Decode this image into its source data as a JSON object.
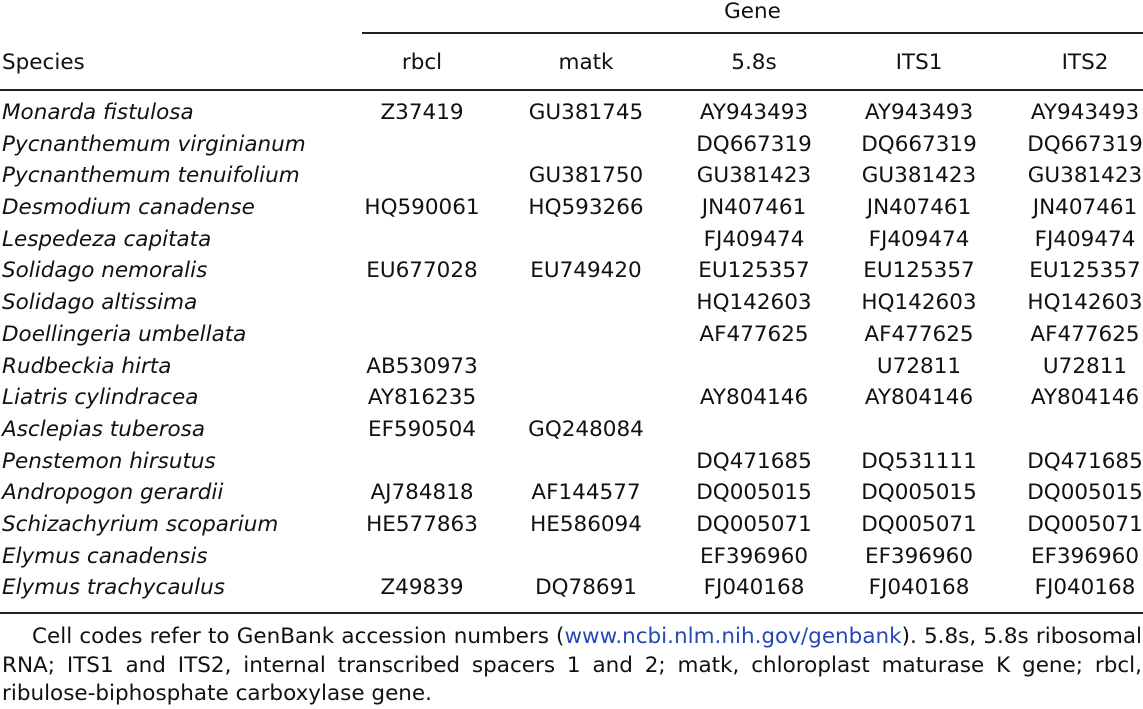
{
  "table": {
    "group_header": "Gene",
    "columns": [
      "Species",
      "rbcl",
      "matk",
      "5.8s",
      "ITS1",
      "ITS2"
    ],
    "rows": [
      {
        "species": "Monarda fistulosa",
        "rbcl": "Z37419",
        "matk": "GU381745",
        "s58": "AY943493",
        "its1": "AY943493",
        "its2": "AY943493"
      },
      {
        "species": "Pycnanthemum virginianum",
        "rbcl": "",
        "matk": "",
        "s58": "DQ667319",
        "its1": "DQ667319",
        "its2": "DQ667319"
      },
      {
        "species": "Pycnanthemum tenuifolium",
        "rbcl": "",
        "matk": "GU381750",
        "s58": "GU381423",
        "its1": "GU381423",
        "its2": "GU381423"
      },
      {
        "species": "Desmodium canadense",
        "rbcl": "HQ590061",
        "matk": "HQ593266",
        "s58": "JN407461",
        "its1": "JN407461",
        "its2": "JN407461"
      },
      {
        "species": "Lespedeza capitata",
        "rbcl": "",
        "matk": "",
        "s58": "FJ409474",
        "its1": "FJ409474",
        "its2": "FJ409474"
      },
      {
        "species": "Solidago nemoralis",
        "rbcl": "EU677028",
        "matk": "EU749420",
        "s58": "EU125357",
        "its1": "EU125357",
        "its2": "EU125357"
      },
      {
        "species": "Solidago altissima",
        "rbcl": "",
        "matk": "",
        "s58": "HQ142603",
        "its1": "HQ142603",
        "its2": "HQ142603"
      },
      {
        "species": "Doellingeria umbellata",
        "rbcl": "",
        "matk": "",
        "s58": "AF477625",
        "its1": "AF477625",
        "its2": "AF477625"
      },
      {
        "species": "Rudbeckia hirta",
        "rbcl": "AB530973",
        "matk": "",
        "s58": "",
        "its1": "U72811",
        "its2": "U72811"
      },
      {
        "species": "Liatris cylindracea",
        "rbcl": "AY816235",
        "matk": "",
        "s58": "AY804146",
        "its1": "AY804146",
        "its2": "AY804146"
      },
      {
        "species": "Asclepias tuberosa",
        "rbcl": "EF590504",
        "matk": "GQ248084",
        "s58": "",
        "its1": "",
        "its2": ""
      },
      {
        "species": "Penstemon hirsutus",
        "rbcl": "",
        "matk": "",
        "s58": "DQ471685",
        "its1": "DQ531111",
        "its2": "DQ471685"
      },
      {
        "species": "Andropogon gerardii",
        "rbcl": "AJ784818",
        "matk": "AF144577",
        "s58": "DQ005015",
        "its1": "DQ005015",
        "its2": "DQ005015"
      },
      {
        "species": "Schizachyrium scoparium",
        "rbcl": "HE577863",
        "matk": "HE586094",
        "s58": "DQ005071",
        "its1": "DQ005071",
        "its2": "DQ005071"
      },
      {
        "species": "Elymus canadensis",
        "rbcl": "",
        "matk": "",
        "s58": "EF396960",
        "its1": "EF396960",
        "its2": "EF396960"
      },
      {
        "species": "Elymus trachycaulus",
        "rbcl": "Z49839",
        "matk": "DQ78691",
        "s58": "FJ040168",
        "its1": "FJ040168",
        "its2": "FJ040168"
      }
    ]
  },
  "footnote": {
    "before_link": "Cell codes refer to GenBank accession numbers (",
    "link_text": "www.ncbi.nlm.nih.gov/genbank",
    "after_link": "). 5.8s, 5.8s ribosomal RNA; ITS1 and ITS2, internal transcribed spacers 1 and 2; matk, chloroplast maturase K gene; rbcl, ribulose-biphosphate carboxylase gene.",
    "link_color": "#2448b8"
  }
}
